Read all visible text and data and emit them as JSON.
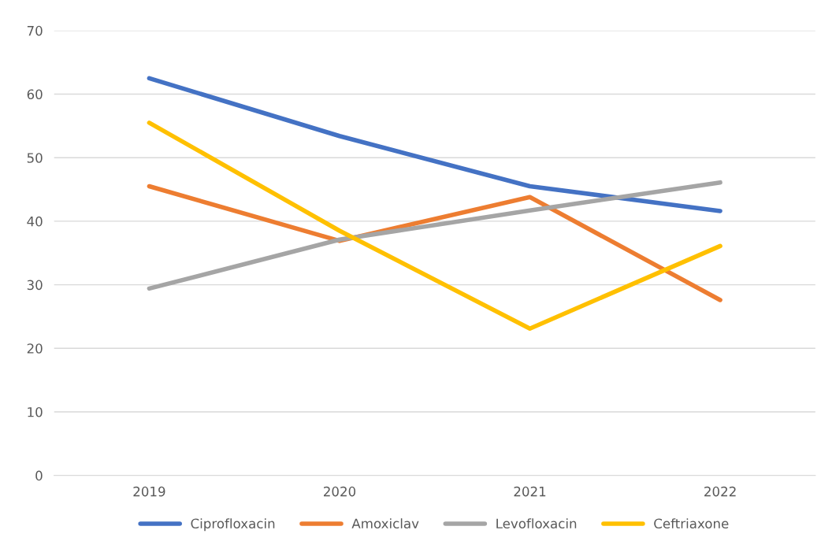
{
  "chart_data": {
    "type": "line",
    "categories": [
      "2019",
      "2020",
      "2021",
      "2022"
    ],
    "series": [
      {
        "name": "Ciprofloxacin",
        "color": "#4472c4",
        "values": [
          62.5,
          53.4,
          45.5,
          41.6
        ]
      },
      {
        "name": "Amoxiclav",
        "color": "#ed7d31",
        "values": [
          45.5,
          36.9,
          43.8,
          27.6
        ]
      },
      {
        "name": "Levofloxacin",
        "color": "#a5a5a5",
        "values": [
          29.4,
          37.1,
          41.7,
          46.1
        ]
      },
      {
        "name": "Ceftriaxone",
        "color": "#ffc000",
        "values": [
          55.5,
          38.5,
          23.1,
          36.1
        ]
      }
    ],
    "ylim": [
      0,
      70
    ],
    "yticks": [
      0,
      10,
      20,
      30,
      40,
      50,
      60,
      70
    ],
    "grid": "y",
    "legend": "bottom",
    "marker": "none",
    "line_style": "solid"
  }
}
